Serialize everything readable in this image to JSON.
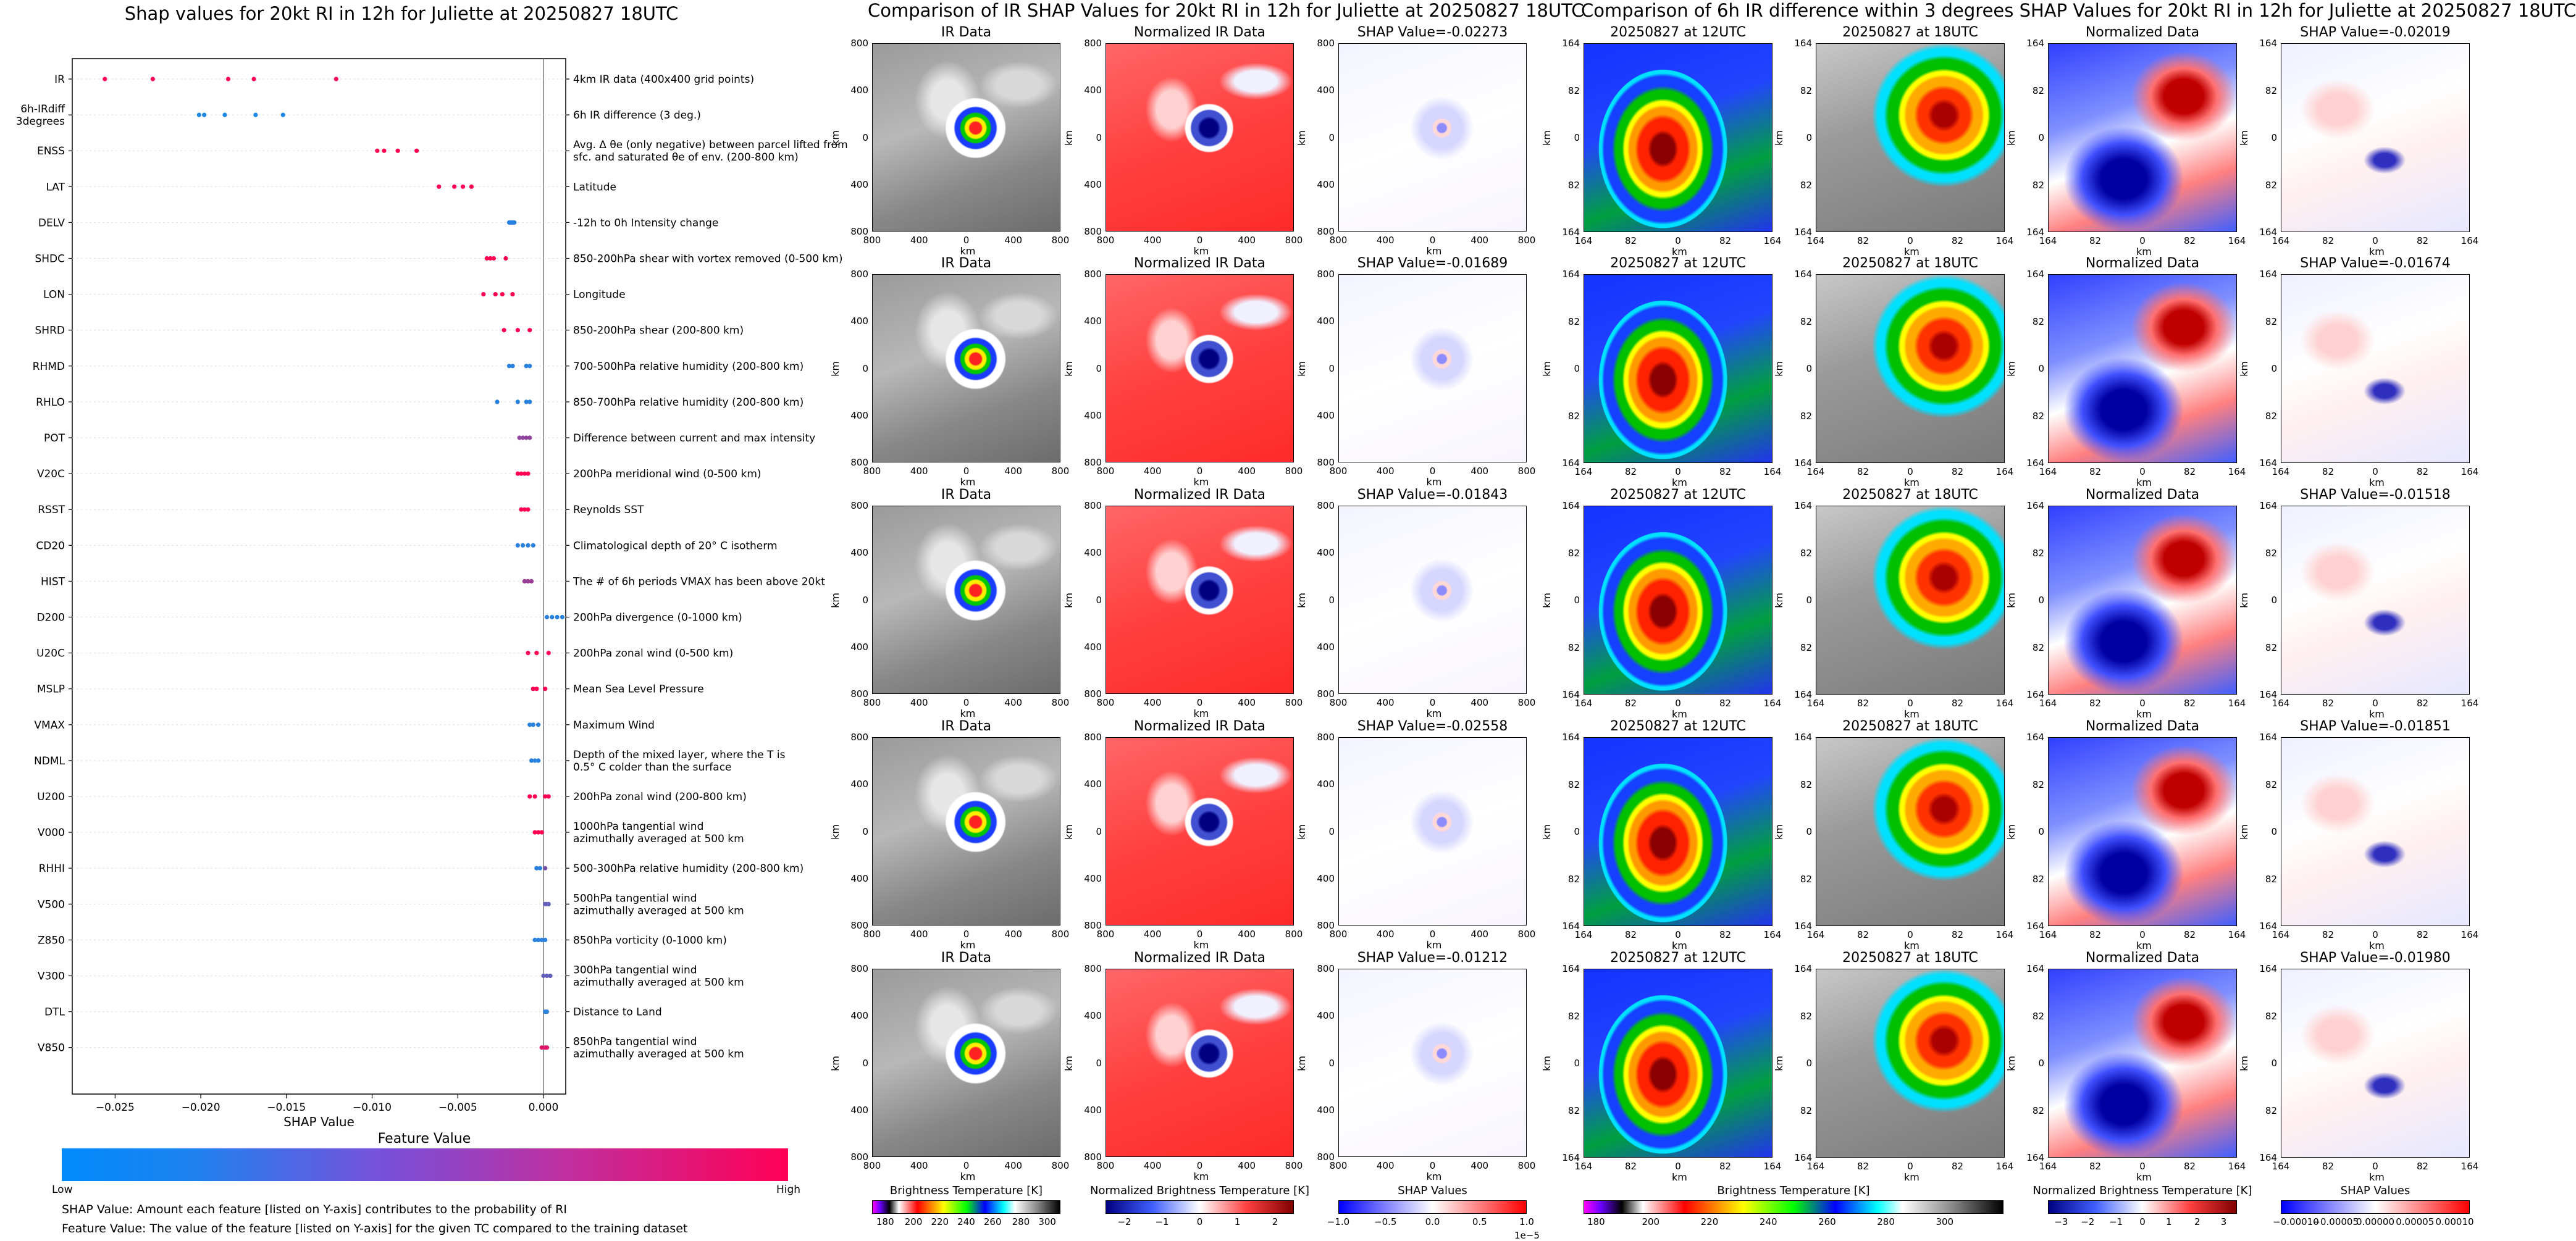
{
  "shap_title": "Shap values for 20kt RI in 12h for Juliette at 20250827 18UTC",
  "ir_title": "Comparison of IR SHAP Values for 20kt RI in 12h for Juliette at 20250827 18UTC",
  "diff_title": "Comparison of 6h IR difference within 3 degrees SHAP Values for 20kt RI in 12h for Juliette at 20250827 18UTC",
  "feature_value_label": "Feature Value",
  "low_label": "Low",
  "high_label": "High",
  "note1": "SHAP Value: Amount each feature [listed on Y-axis] contributes to the probability of RI",
  "note2": "Feature Value: The value of the feature [listed on Y-axis] for the given TC compared to the training dataset",
  "chart_data": [
    {
      "type": "scatter",
      "title": "Shap values for 20kt RI in 12h for Juliette at 20250827 18UTC",
      "xlabel": "SHAP Value",
      "xlim": [
        -0.0275,
        0.0013
      ],
      "xticks": [
        "-0.025",
        "-0.020",
        "-0.015",
        "-0.010",
        "-0.005",
        "0.000"
      ],
      "colormap": {
        "low": "#1e88e5",
        "high": "#ff0052"
      },
      "features": [
        {
          "name": "IR",
          "desc": "4km IR data (400x400 grid points)",
          "points": [
            [
              -0.0256,
              1
            ],
            [
              -0.0228,
              1
            ],
            [
              -0.0184,
              1
            ],
            [
              -0.0169,
              1
            ],
            [
              -0.0121,
              1
            ]
          ]
        },
        {
          "name": "6h-IRdiff 3degrees",
          "desc": "6h IR difference (3 deg.)",
          "points": [
            [
              -0.0201,
              0
            ],
            [
              -0.0198,
              0
            ],
            [
              -0.0186,
              0
            ],
            [
              -0.0168,
              0
            ],
            [
              -0.0152,
              0
            ]
          ]
        },
        {
          "name": "ENSS",
          "desc": "Avg. Δ θe (only negative) between parcel lifted from sfc. and saturated θe of env. (200-800 km)",
          "points": [
            [
              -0.0097,
              1
            ],
            [
              -0.0093,
              1
            ],
            [
              -0.0085,
              1
            ],
            [
              -0.0074,
              1
            ]
          ]
        },
        {
          "name": "LAT",
          "desc": "Latitude",
          "points": [
            [
              -0.0061,
              1
            ],
            [
              -0.0052,
              1
            ],
            [
              -0.0047,
              1
            ],
            [
              -0.0042,
              1
            ]
          ]
        },
        {
          "name": "DELV",
          "desc": "-12h to 0h Intensity change",
          "points": [
            [
              -0.002,
              0.05
            ],
            [
              -0.0019,
              0.05
            ],
            [
              -0.0018,
              0.05
            ],
            [
              -0.0017,
              0.05
            ]
          ]
        },
        {
          "name": "SHDC",
          "desc": "850-200hPa shear with vortex removed (0-500 km)",
          "points": [
            [
              -0.0033,
              1
            ],
            [
              -0.0031,
              1
            ],
            [
              -0.0029,
              1
            ],
            [
              -0.0022,
              1
            ]
          ]
        },
        {
          "name": "LON",
          "desc": "Longitude",
          "points": [
            [
              -0.0035,
              1
            ],
            [
              -0.0028,
              1
            ],
            [
              -0.0024,
              1
            ],
            [
              -0.0018,
              1
            ]
          ]
        },
        {
          "name": "SHRD",
          "desc": "850-200hPa shear (200-800 km)",
          "points": [
            [
              -0.0023,
              1
            ],
            [
              -0.0015,
              1
            ],
            [
              -0.0008,
              1
            ]
          ]
        },
        {
          "name": "RHMD",
          "desc": "700-500hPa relative humidity (200-800 km)",
          "points": [
            [
              -0.002,
              0.05
            ],
            [
              -0.0018,
              0.05
            ],
            [
              -0.001,
              0.05
            ],
            [
              -0.0008,
              0.05
            ]
          ]
        },
        {
          "name": "RHLO",
          "desc": "850-700hPa relative humidity (200-800 km)",
          "points": [
            [
              -0.0027,
              0.05
            ],
            [
              -0.0015,
              0.05
            ],
            [
              -0.001,
              0.05
            ],
            [
              -0.0008,
              0.05
            ]
          ]
        },
        {
          "name": "POT",
          "desc": "Difference between current and max intensity",
          "points": [
            [
              -0.0014,
              0.5
            ],
            [
              -0.0012,
              0.5
            ],
            [
              -0.001,
              0.5
            ],
            [
              -0.0008,
              0.5
            ]
          ]
        },
        {
          "name": "V20C",
          "desc": "200hPa meridional wind (0-500 km)",
          "points": [
            [
              -0.0015,
              1
            ],
            [
              -0.0013,
              1
            ],
            [
              -0.0011,
              1
            ],
            [
              -0.0009,
              1
            ]
          ]
        },
        {
          "name": "RSST",
          "desc": "Reynolds SST",
          "points": [
            [
              -0.0013,
              1
            ],
            [
              -0.0011,
              1
            ],
            [
              -0.0009,
              1
            ]
          ]
        },
        {
          "name": "CD20",
          "desc": "Climatological depth of 20° C isotherm",
          "points": [
            [
              -0.0015,
              0.05
            ],
            [
              -0.0012,
              0.05
            ],
            [
              -0.0009,
              0.05
            ],
            [
              -0.0006,
              0.05
            ]
          ]
        },
        {
          "name": "HIST",
          "desc": "The # of 6h periods VMAX has been above 20kt",
          "points": [
            [
              -0.0011,
              0.55
            ],
            [
              -0.0009,
              0.55
            ],
            [
              -0.0007,
              0.55
            ]
          ]
        },
        {
          "name": "D200",
          "desc": "200hPa divergence (0-1000 km)",
          "points": [
            [
              0.0002,
              0.05
            ],
            [
              0.0005,
              0.05
            ],
            [
              0.0008,
              0.05
            ],
            [
              0.0011,
              0.05
            ]
          ]
        },
        {
          "name": "U20C",
          "desc": "200hPa zonal wind (0-500 km)",
          "points": [
            [
              -0.0009,
              1
            ],
            [
              -0.0004,
              1
            ],
            [
              0.0003,
              1
            ]
          ]
        },
        {
          "name": "MSLP",
          "desc": "Mean Sea Level Pressure",
          "points": [
            [
              -0.0006,
              1
            ],
            [
              -0.0004,
              1
            ],
            [
              0.0001,
              1
            ]
          ]
        },
        {
          "name": "VMAX",
          "desc": "Maximum Wind",
          "points": [
            [
              -0.0008,
              0.05
            ],
            [
              -0.0006,
              0.05
            ],
            [
              -0.0003,
              0.05
            ]
          ]
        },
        {
          "name": "NDML",
          "desc": "Depth of the mixed layer, where the T is 0.5° C colder than the surface",
          "points": [
            [
              -0.0007,
              0.05
            ],
            [
              -0.0005,
              0.05
            ],
            [
              -0.0003,
              0.05
            ]
          ]
        },
        {
          "name": "U200",
          "desc": "200hPa zonal wind (200-800 km)",
          "points": [
            [
              -0.0008,
              1
            ],
            [
              -0.0005,
              1
            ],
            [
              0.0001,
              1
            ],
            [
              0.0003,
              1
            ]
          ]
        },
        {
          "name": "V000",
          "desc": "1000hPa tangential wind azimuthally averaged at 500 km",
          "points": [
            [
              -0.0005,
              1
            ],
            [
              -0.0003,
              1
            ],
            [
              -0.0001,
              1
            ]
          ]
        },
        {
          "name": "RHHI",
          "desc": "500-300hPa relative humidity (200-800 km)",
          "points": [
            [
              -0.0004,
              0.05
            ],
            [
              -0.0002,
              0.05
            ],
            [
              0.0001,
              0.4
            ]
          ]
        },
        {
          "name": "V500",
          "desc": "500hPa tangential wind azimuthally averaged at 500 km",
          "points": [
            [
              0.0001,
              0.3
            ],
            [
              0.0002,
              0.3
            ],
            [
              0.0003,
              0.3
            ]
          ]
        },
        {
          "name": "Z850",
          "desc": "850hPa vorticity (0-1000 km)",
          "points": [
            [
              -0.0005,
              0.05
            ],
            [
              -0.0003,
              0.05
            ],
            [
              -0.0001,
              0.05
            ],
            [
              0.0001,
              0.05
            ]
          ]
        },
        {
          "name": "V300",
          "desc": "300hPa tangential wind azimuthally averaged at 500 km",
          "points": [
            [
              0.0,
              0.3
            ],
            [
              0.0002,
              0.3
            ],
            [
              0.0004,
              0.3
            ]
          ]
        },
        {
          "name": "DTL",
          "desc": "Distance to Land",
          "points": [
            [
              0.0001,
              0.05
            ],
            [
              0.0002,
              0.05
            ]
          ]
        },
        {
          "name": "V850",
          "desc": "850hPa tangential wind azimuthally averaged at 500 km",
          "points": [
            [
              -0.0001,
              0.85
            ],
            [
              0.0001,
              0.85
            ],
            [
              0.0002,
              0.85
            ]
          ]
        }
      ]
    },
    {
      "type": "heatmap",
      "title": "Comparison of IR SHAP Values for 20kt RI in 12h for Juliette at 20250827 18UTC",
      "columns": [
        "IR Data",
        "Normalized IR Data",
        "SHAP Value"
      ],
      "shap_values": [
        "-0.02273",
        "-0.01689",
        "-0.01843",
        "-0.02558",
        "-0.01212"
      ],
      "axis_ticks": [
        "800",
        "400",
        "0",
        "400",
        "800"
      ],
      "axis_label": "km",
      "colorbars": [
        {
          "title": "Brightness Temperature [K]",
          "ticks": [
            "180",
            "200",
            "220",
            "240",
            "260",
            "280",
            "300"
          ]
        },
        {
          "title": "Normalized Brightness Temperature [K]",
          "ticks": [
            "−2",
            "−1",
            "0",
            "1",
            "2"
          ]
        },
        {
          "title": "SHAP Values",
          "ticks": [
            "−1.0",
            "−0.5",
            "0.0",
            "0.5",
            "1.0"
          ],
          "offset": "1e−5"
        }
      ]
    },
    {
      "type": "heatmap",
      "title": "Comparison of 6h IR difference within 3 degrees SHAP Values for 20kt RI in 12h for Juliette at 20250827 18UTC",
      "columns": [
        "20250827 at 12UTC",
        "20250827 at 18UTC",
        "Normalized Data",
        "SHAP Value"
      ],
      "shap_values": [
        "-0.02019",
        "-0.01674",
        "-0.01518",
        "-0.01851",
        "-0.01980"
      ],
      "axis_ticks": [
        "164",
        "82",
        "0",
        "82",
        "164"
      ],
      "axis_label": "km",
      "colorbars": [
        {
          "title": "Brightness Temperature [K]",
          "ticks": [
            "180",
            "200",
            "220",
            "240",
            "260",
            "280",
            "300"
          ]
        },
        {
          "title": "Normalized Brightness Temperature [K]",
          "ticks": [
            "−3",
            "−2",
            "−1",
            "0",
            "1",
            "2",
            "3"
          ]
        },
        {
          "title": "SHAP Values",
          "ticks": [
            "−0.00010",
            "−0.00005",
            "0.00000",
            "0.00005",
            "0.00010"
          ]
        }
      ]
    }
  ]
}
